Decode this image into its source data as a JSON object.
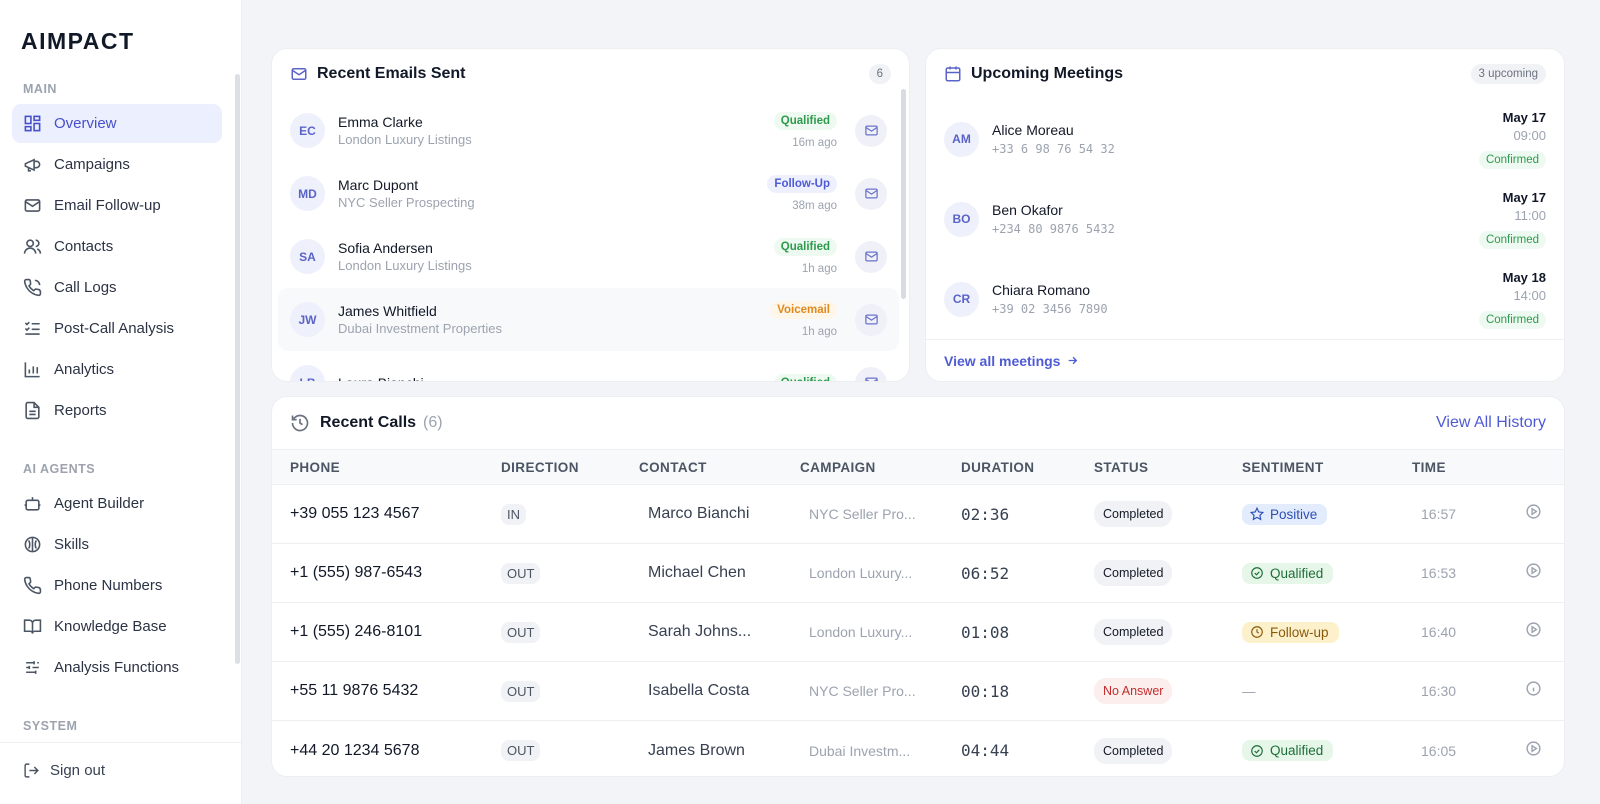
{
  "sidebar": {
    "logo": "AIMPACT",
    "sections": [
      {
        "title": "MAIN",
        "items": [
          "Overview",
          "Campaigns",
          "Email Follow-up",
          "Contacts",
          "Call Logs",
          "Post-Call Analysis",
          "Analytics",
          "Reports"
        ]
      },
      {
        "title": "AI AGENTS",
        "items": [
          "Agent Builder",
          "Skills",
          "Phone Numbers",
          "Knowledge Base",
          "Analysis Functions"
        ]
      },
      {
        "title": "SYSTEM",
        "items": []
      }
    ],
    "active": "Overview",
    "sign_out": "Sign out"
  },
  "emails": {
    "title": "Recent Emails Sent",
    "count": "6",
    "items": [
      {
        "initials": "EC",
        "name": "Emma Clarke",
        "sub": "London Luxury Listings",
        "status": "Qualified",
        "time": "16m ago"
      },
      {
        "initials": "MD",
        "name": "Marc Dupont",
        "sub": "NYC Seller Prospecting",
        "status": "Follow-Up",
        "time": "38m ago"
      },
      {
        "initials": "SA",
        "name": "Sofia Andersen",
        "sub": "London Luxury Listings",
        "status": "Qualified",
        "time": "1h ago"
      },
      {
        "initials": "JW",
        "name": "James Whitfield",
        "sub": "Dubai Investment Properties",
        "status": "Voicemail",
        "time": "1h ago"
      },
      {
        "initials": "LB",
        "name": "Laura Bianchi",
        "status": "Qualified"
      }
    ]
  },
  "meetings": {
    "title": "Upcoming Meetings",
    "badge": "3 upcoming",
    "items": [
      {
        "initials": "AM",
        "name": "Alice Moreau",
        "phone": "+33 6 98 76 54 32",
        "date": "May 17",
        "time": "09:00",
        "status": "Confirmed"
      },
      {
        "initials": "BO",
        "name": "Ben Okafor",
        "phone": "+234 80 9876 5432",
        "date": "May 17",
        "time": "11:00",
        "status": "Confirmed"
      },
      {
        "initials": "CR",
        "name": "Chiara Romano",
        "phone": "+39 02 3456 7890",
        "date": "May 18",
        "time": "14:00",
        "status": "Confirmed"
      }
    ],
    "link": "View all meetings"
  },
  "calls": {
    "title": "Recent Calls",
    "count": "(6)",
    "link": "View All History",
    "headers": [
      "PHONE",
      "DIRECTION",
      "CONTACT",
      "CAMPAIGN",
      "DURATION",
      "STATUS",
      "SENTIMENT",
      "TIME"
    ],
    "rows": [
      {
        "phone": "+39 055 123 4567",
        "direction": "IN",
        "contact": "Marco Bianchi",
        "campaign": "NYC Seller Pro...",
        "duration": "02:36",
        "status": "Completed",
        "sentiment": "Positive",
        "time": "16:57"
      },
      {
        "phone": "+1 (555) 987-6543",
        "direction": "OUT",
        "contact": "Michael Chen",
        "campaign": "London Luxury...",
        "duration": "06:52",
        "status": "Completed",
        "sentiment": "Qualified",
        "time": "16:53"
      },
      {
        "phone": "+1 (555) 246-8101",
        "direction": "OUT",
        "contact": "Sarah Johns...",
        "campaign": "London Luxury...",
        "duration": "01:08",
        "status": "Completed",
        "sentiment": "Follow-up",
        "time": "16:40"
      },
      {
        "phone": "+55 11 9876 5432",
        "direction": "OUT",
        "contact": "Isabella Costa",
        "campaign": "NYC Seller Pro...",
        "duration": "00:18",
        "status": "No Answer",
        "sentiment": "—",
        "time": "16:30"
      },
      {
        "phone": "+44 20 1234 5678",
        "direction": "OUT",
        "contact": "James Brown",
        "campaign": "Dubai Investm...",
        "duration": "04:44",
        "status": "Completed",
        "sentiment": "Qualified",
        "time": "16:05"
      }
    ]
  }
}
